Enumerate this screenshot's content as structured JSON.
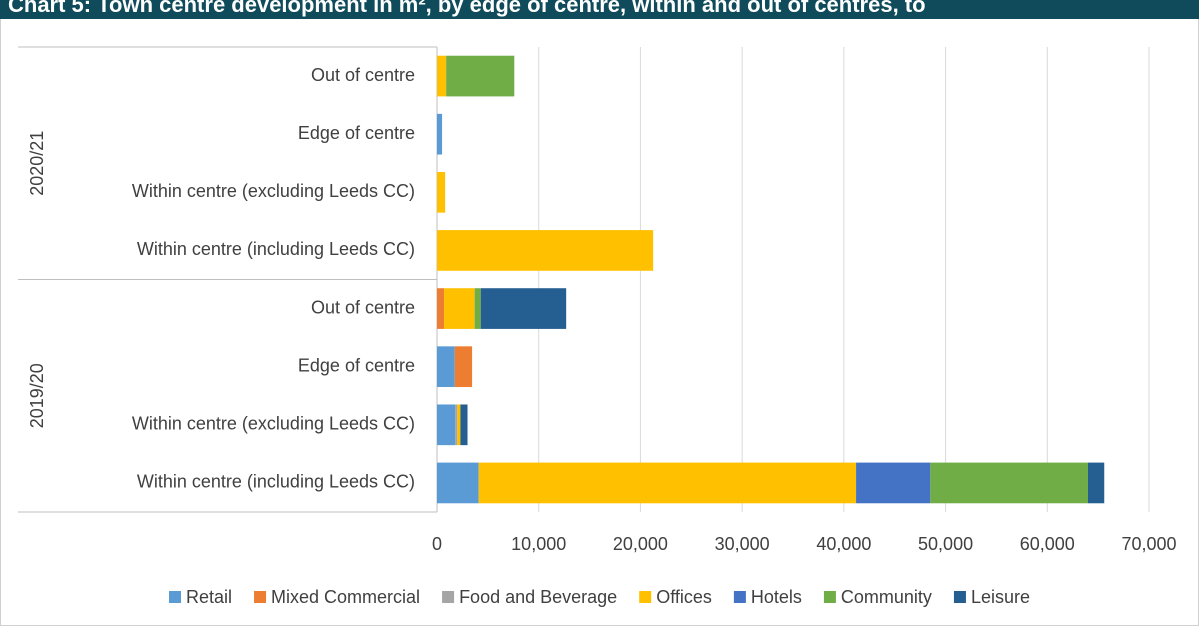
{
  "chart_data": {
    "type": "stacked_barh",
    "title": "Chart 5: Town centre development in m², by edge of centre, within and out of centres, to",
    "groups": [
      {
        "name": "2020/21",
        "categories": [
          "Out of centre",
          "Edge of centre",
          "Within centre (excluding Leeds CC)",
          "Within centre (including Leeds CC)"
        ]
      },
      {
        "name": "2019/20",
        "categories": [
          "Out of centre",
          "Edge of centre",
          "Within centre (excluding Leeds CC)",
          "Within centre (including Leeds CC)"
        ]
      }
    ],
    "series": [
      {
        "name": "Retail",
        "color": "#5b9bd5",
        "values": [
          0,
          500,
          0,
          0,
          0,
          1750,
          1800,
          4100
        ]
      },
      {
        "name": "Mixed Commercial",
        "color": "#ed7d31",
        "values": [
          0,
          0,
          0,
          0,
          700,
          1700,
          0,
          0
        ]
      },
      {
        "name": "Food and Beverage",
        "color": "#a5a5a5",
        "values": [
          0,
          0,
          0,
          0,
          0,
          0,
          200,
          0
        ]
      },
      {
        "name": "Offices",
        "color": "#ffc000",
        "values": [
          900,
          0,
          800,
          21250,
          3000,
          0,
          300,
          37100
        ]
      },
      {
        "name": "Hotels",
        "color": "#4472c4",
        "values": [
          0,
          0,
          0,
          0,
          0,
          0,
          0,
          7300
        ]
      },
      {
        "name": "Community",
        "color": "#70ad47",
        "values": [
          6700,
          0,
          0,
          0,
          600,
          0,
          0,
          15500
        ]
      },
      {
        "name": "Leisure",
        "color": "#255e91",
        "values": [
          0,
          0,
          0,
          0,
          8400,
          0,
          700,
          1600
        ]
      }
    ],
    "xlim": [
      0,
      70000
    ],
    "xticks": [
      0,
      {
        "value": 10000,
        "label": "10,000"
      },
      {
        "value": 20000,
        "label": "20,000"
      },
      {
        "value": 30000,
        "label": "30,000"
      },
      {
        "value": 40000,
        "label": "40,000"
      },
      {
        "value": 50000,
        "label": "50,000"
      },
      {
        "value": 60000,
        "label": "60,000"
      },
      {
        "value": 70000,
        "label": "70,000"
      }
    ],
    "grid": true,
    "legend": "bottom"
  }
}
